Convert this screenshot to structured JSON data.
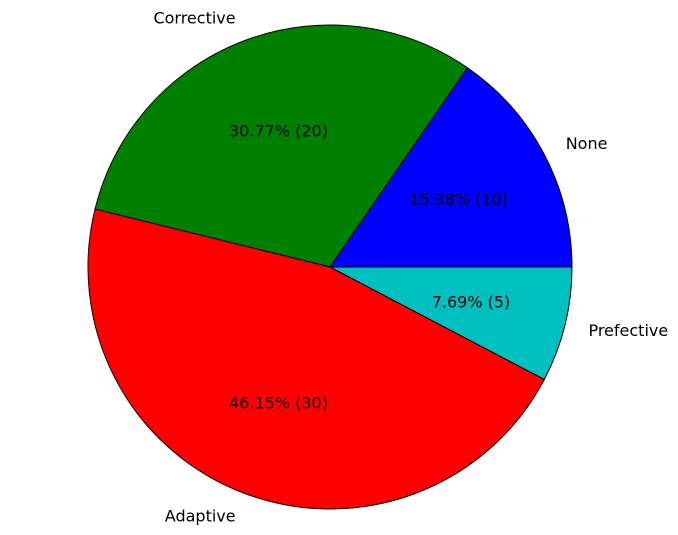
{
  "chart_data": {
    "type": "pie",
    "title": "",
    "labels": [
      "None",
      "Corrective",
      "Adaptive",
      "Prefective"
    ],
    "values": [
      10,
      20,
      30,
      5
    ],
    "percent_labels": [
      "15.38%  (10)",
      "30.77%  (20)",
      "46.15%  (30)",
      "7.69%  (5)"
    ],
    "colors": [
      "#0000ff",
      "#008000",
      "#ff0000",
      "#00bfbf"
    ],
    "start_angle_deg": 0,
    "direction": "counterclockwise",
    "legend": "none"
  }
}
